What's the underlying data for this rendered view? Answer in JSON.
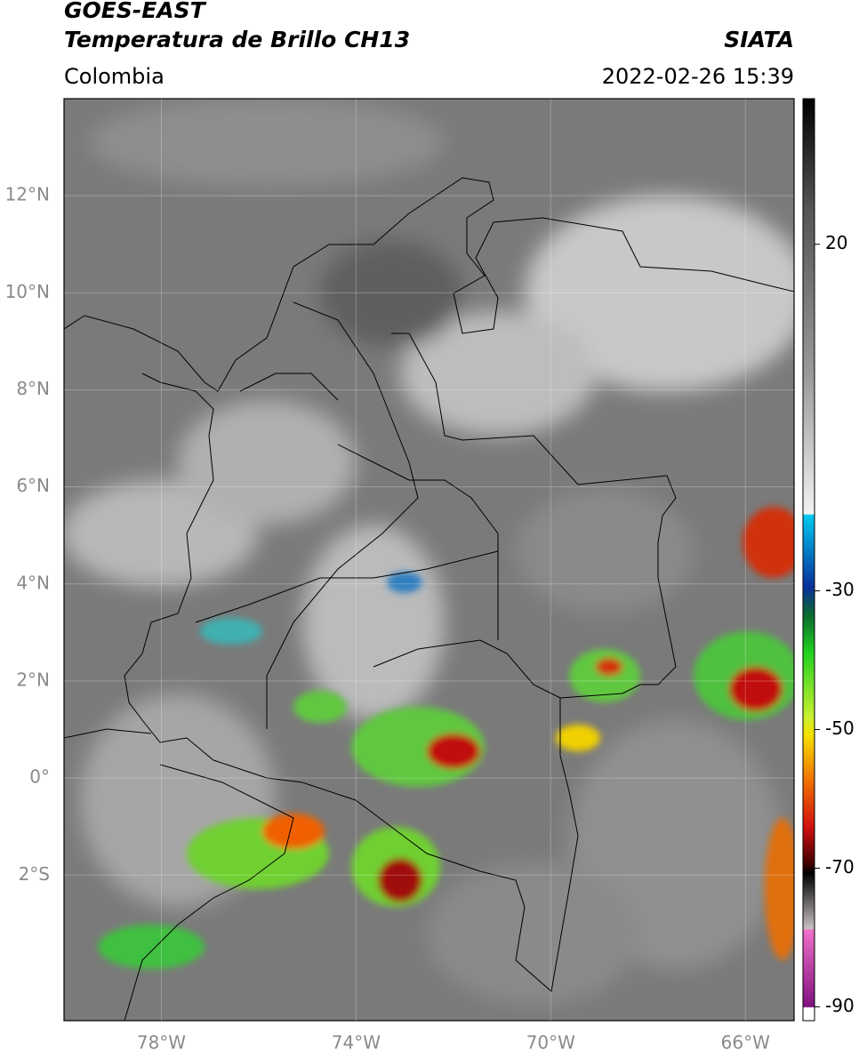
{
  "header": {
    "title": "GOES-EAST",
    "subtitle": "Temperatura de Brillo CH13",
    "source": "SIATA",
    "region": "Colombia",
    "timestamp": "2022-02-26 15:39"
  },
  "map": {
    "lonlim": [
      -80,
      -65
    ],
    "latlim": [
      -5,
      14
    ],
    "lat_ticks": [
      {
        "value": 12,
        "label": "12°N"
      },
      {
        "value": 10,
        "label": "10°N"
      },
      {
        "value": 8,
        "label": "8°N"
      },
      {
        "value": 6,
        "label": "6°N"
      },
      {
        "value": 4,
        "label": "4°N"
      },
      {
        "value": 2,
        "label": "2°N"
      },
      {
        "value": 0,
        "label": "0°"
      },
      {
        "value": -2,
        "label": "2°S"
      }
    ],
    "lon_ticks": [
      {
        "value": -78,
        "label": "78°W"
      },
      {
        "value": -74,
        "label": "74°W"
      },
      {
        "value": -70,
        "label": "70°W"
      },
      {
        "value": -66,
        "label": "66°W"
      }
    ]
  },
  "colorbar": {
    "lim": [
      -92,
      41
    ],
    "ticks": [
      20,
      -30,
      -50,
      -70,
      -90
    ]
  }
}
